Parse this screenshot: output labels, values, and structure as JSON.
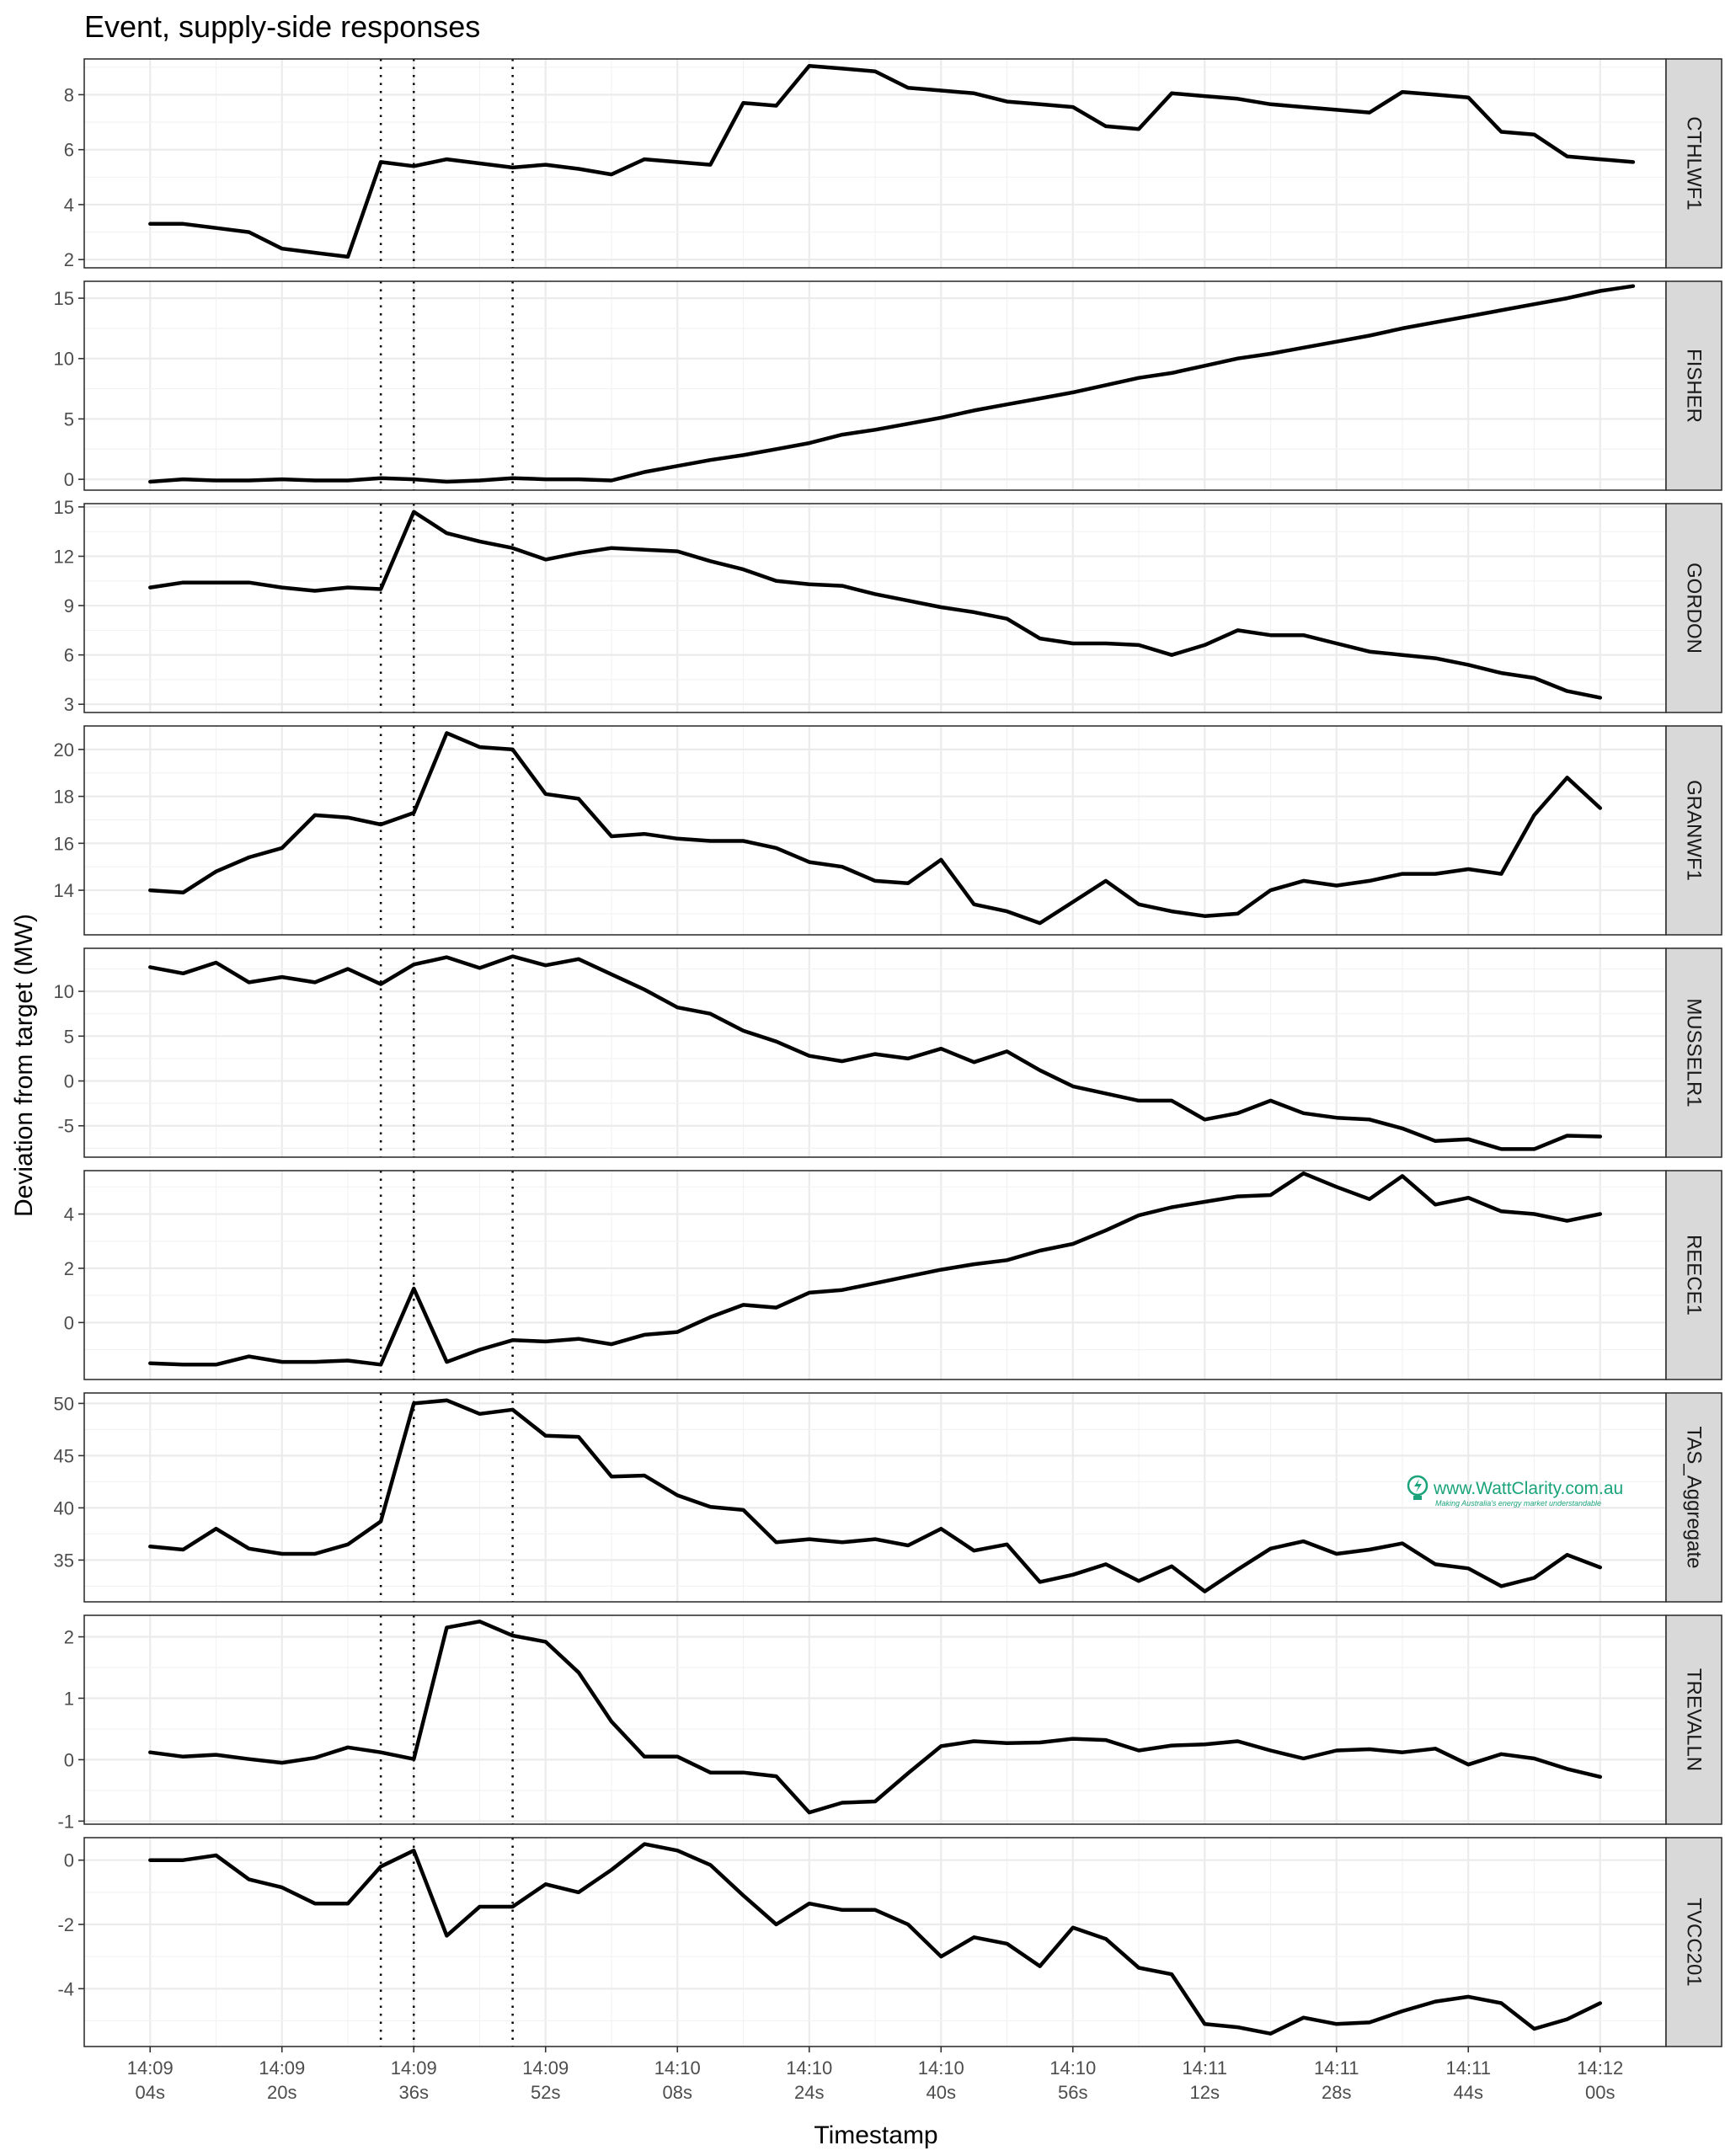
{
  "chart_data": {
    "type": "line",
    "title": "Event, supply-side responses",
    "xlabel": "Timestamp",
    "ylabel": "Deviation from target (MW)",
    "x_start_seconds": 4,
    "x_step_seconds": 4,
    "x_ticks": [
      {
        "sec": 4,
        "line1": "14:09",
        "line2": "04s"
      },
      {
        "sec": 20,
        "line1": "14:09",
        "line2": "20s"
      },
      {
        "sec": 36,
        "line1": "14:09",
        "line2": "36s"
      },
      {
        "sec": 52,
        "line1": "14:09",
        "line2": "52s"
      },
      {
        "sec": 68,
        "line1": "14:10",
        "line2": "08s"
      },
      {
        "sec": 84,
        "line1": "14:10",
        "line2": "24s"
      },
      {
        "sec": 100,
        "line1": "14:10",
        "line2": "40s"
      },
      {
        "sec": 116,
        "line1": "14:10",
        "line2": "56s"
      },
      {
        "sec": 132,
        "line1": "14:11",
        "line2": "12s"
      },
      {
        "sec": 148,
        "line1": "14:11",
        "line2": "28s"
      },
      {
        "sec": 164,
        "line1": "14:11",
        "line2": "44s"
      },
      {
        "sec": 180,
        "line1": "14:12",
        "line2": "00s"
      }
    ],
    "x_range_seconds": [
      -4,
      188
    ],
    "event_markers_seconds": [
      32,
      36,
      48
    ],
    "grid": true,
    "facets": [
      {
        "name": "CTHLWF1",
        "ylim": [
          1.7,
          9.3
        ],
        "yticks": [
          2,
          4,
          6,
          8
        ],
        "values": [
          3.3,
          3.3,
          3.15,
          3.0,
          2.4,
          2.25,
          2.1,
          5.55,
          5.4,
          5.65,
          5.5,
          5.35,
          5.45,
          5.3,
          5.1,
          5.65,
          5.55,
          5.45,
          7.7,
          7.6,
          9.05,
          8.95,
          8.85,
          8.25,
          8.15,
          8.05,
          7.75,
          7.65,
          7.55,
          6.85,
          6.75,
          8.05,
          7.95,
          7.85,
          7.65,
          7.55,
          7.45,
          7.35,
          8.1,
          8.0,
          7.9,
          6.65,
          6.55,
          5.75,
          5.65,
          5.55
        ]
      },
      {
        "name": "FISHER",
        "ylim": [
          -0.9,
          16.4
        ],
        "yticks": [
          0,
          5,
          10,
          15
        ],
        "values": [
          -0.2,
          0.0,
          -0.1,
          -0.1,
          0.0,
          -0.1,
          -0.1,
          0.1,
          0.0,
          -0.2,
          -0.1,
          0.1,
          0.0,
          0.0,
          -0.1,
          0.6,
          1.1,
          1.6,
          2.0,
          2.5,
          3.0,
          3.7,
          4.1,
          4.6,
          5.1,
          5.7,
          6.2,
          6.7,
          7.2,
          7.8,
          8.4,
          8.8,
          9.4,
          10.0,
          10.4,
          10.9,
          11.4,
          11.9,
          12.5,
          13.0,
          13.5,
          14.0,
          14.5,
          15.0,
          15.6,
          16.0
        ]
      },
      {
        "name": "GORDON",
        "ylim": [
          2.5,
          15.2
        ],
        "yticks": [
          3,
          6,
          9,
          12,
          15
        ],
        "values": [
          10.1,
          10.4,
          10.4,
          10.4,
          10.1,
          9.9,
          10.1,
          10.0,
          14.7,
          13.4,
          12.9,
          12.5,
          11.8,
          12.2,
          12.5,
          12.4,
          12.3,
          11.7,
          11.2,
          10.5,
          10.3,
          10.2,
          9.7,
          9.3,
          8.9,
          8.6,
          8.2,
          7.0,
          6.7,
          6.7,
          6.6,
          6.0,
          6.6,
          7.5,
          7.2,
          7.2,
          6.7,
          6.2,
          6.0,
          5.8,
          5.4,
          4.9,
          4.6,
          3.8,
          3.4
        ]
      },
      {
        "name": "GRANWF1",
        "ylim": [
          12.1,
          21.0
        ],
        "yticks": [
          14,
          16,
          18,
          20
        ],
        "values": [
          14.0,
          13.9,
          14.8,
          15.4,
          15.8,
          17.2,
          17.1,
          16.8,
          17.3,
          20.7,
          20.1,
          20.0,
          18.1,
          17.9,
          16.3,
          16.4,
          16.2,
          16.1,
          16.1,
          15.8,
          15.2,
          15.0,
          14.4,
          14.3,
          15.3,
          13.4,
          13.1,
          12.6,
          13.5,
          14.4,
          13.4,
          13.1,
          12.9,
          13.0,
          14.0,
          14.4,
          14.2,
          14.4,
          14.7,
          14.7,
          14.9,
          14.7,
          17.2,
          18.8,
          17.5
        ]
      },
      {
        "name": "MUSSELR1",
        "ylim": [
          -8.5,
          14.8
        ],
        "yticks": [
          -5,
          0,
          5,
          10
        ],
        "values": [
          12.7,
          12.0,
          13.2,
          11.0,
          11.6,
          11.0,
          12.5,
          10.8,
          13.0,
          13.8,
          12.6,
          13.9,
          12.9,
          13.6,
          11.9,
          10.2,
          8.2,
          7.5,
          5.6,
          4.4,
          2.8,
          2.2,
          3.0,
          2.5,
          3.6,
          2.1,
          3.3,
          1.2,
          -0.6,
          -1.4,
          -2.2,
          -2.2,
          -4.3,
          -3.6,
          -2.2,
          -3.6,
          -4.1,
          -4.3,
          -5.3,
          -6.7,
          -6.5,
          -7.6,
          -7.6,
          -6.1,
          -6.2
        ]
      },
      {
        "name": "REECE1",
        "ylim": [
          -2.1,
          5.6
        ],
        "yticks": [
          0,
          2,
          4
        ],
        "values": [
          -1.5,
          -1.55,
          -1.55,
          -1.25,
          -1.45,
          -1.45,
          -1.4,
          -1.55,
          1.25,
          -1.45,
          -1.0,
          -0.65,
          -0.7,
          -0.6,
          -0.8,
          -0.45,
          -0.35,
          0.2,
          0.65,
          0.55,
          1.1,
          1.2,
          1.45,
          1.7,
          1.95,
          2.15,
          2.3,
          2.65,
          2.9,
          3.4,
          3.95,
          4.25,
          4.45,
          4.65,
          4.7,
          5.5,
          5.0,
          4.55,
          5.4,
          4.35,
          4.6,
          4.1,
          4.0,
          3.75,
          4.0
        ]
      },
      {
        "name": "TAS_Aggregate",
        "ylim": [
          31.0,
          51.0
        ],
        "yticks": [
          35,
          40,
          45,
          50
        ],
        "values": [
          36.3,
          36.0,
          38.0,
          36.1,
          35.6,
          35.6,
          36.5,
          38.7,
          50.0,
          50.3,
          49.0,
          49.4,
          46.9,
          46.8,
          43.0,
          43.1,
          41.2,
          40.1,
          39.8,
          36.7,
          37.0,
          36.7,
          37.0,
          36.4,
          38.0,
          35.9,
          36.5,
          32.9,
          33.6,
          34.6,
          33.0,
          34.4,
          32.0,
          34.1,
          36.1,
          36.8,
          35.6,
          36.0,
          36.6,
          34.6,
          34.2,
          32.5,
          33.3,
          35.5,
          34.3
        ]
      },
      {
        "name": "TREVALLN",
        "ylim": [
          -1.05,
          2.35
        ],
        "yticks": [
          -1,
          0,
          1,
          2
        ],
        "values": [
          0.12,
          0.05,
          0.08,
          0.01,
          -0.05,
          0.03,
          0.2,
          0.12,
          0.01,
          2.15,
          2.25,
          2.02,
          1.92,
          1.42,
          0.62,
          0.05,
          0.05,
          -0.21,
          -0.21,
          -0.27,
          -0.86,
          -0.7,
          -0.68,
          -0.22,
          0.22,
          0.3,
          0.27,
          0.28,
          0.34,
          0.32,
          0.15,
          0.23,
          0.25,
          0.3,
          0.15,
          0.02,
          0.15,
          0.17,
          0.12,
          0.18,
          -0.08,
          0.09,
          0.02,
          -0.15,
          -0.28
        ]
      },
      {
        "name": "TVCC201",
        "ylim": [
          -5.8,
          0.7
        ],
        "yticks": [
          -4,
          -2,
          0
        ],
        "values": [
          0.0,
          0.0,
          0.15,
          -0.6,
          -0.85,
          -1.35,
          -1.35,
          -0.2,
          0.3,
          -2.35,
          -1.45,
          -1.45,
          -0.75,
          -1.0,
          -0.3,
          0.5,
          0.3,
          -0.15,
          -1.1,
          -2.0,
          -1.35,
          -1.55,
          -1.55,
          -2.0,
          -3.0,
          -2.4,
          -2.6,
          -3.3,
          -2.1,
          -2.45,
          -3.35,
          -3.55,
          -5.1,
          -5.2,
          -5.4,
          -4.9,
          -5.1,
          -5.05,
          -4.7,
          -4.4,
          -4.25,
          -4.45,
          -5.25,
          -4.95,
          -4.45
        ]
      }
    ]
  },
  "watermark": {
    "main": "www.WattClarity.com.au",
    "sub": "Making Australia's energy market understandable"
  }
}
